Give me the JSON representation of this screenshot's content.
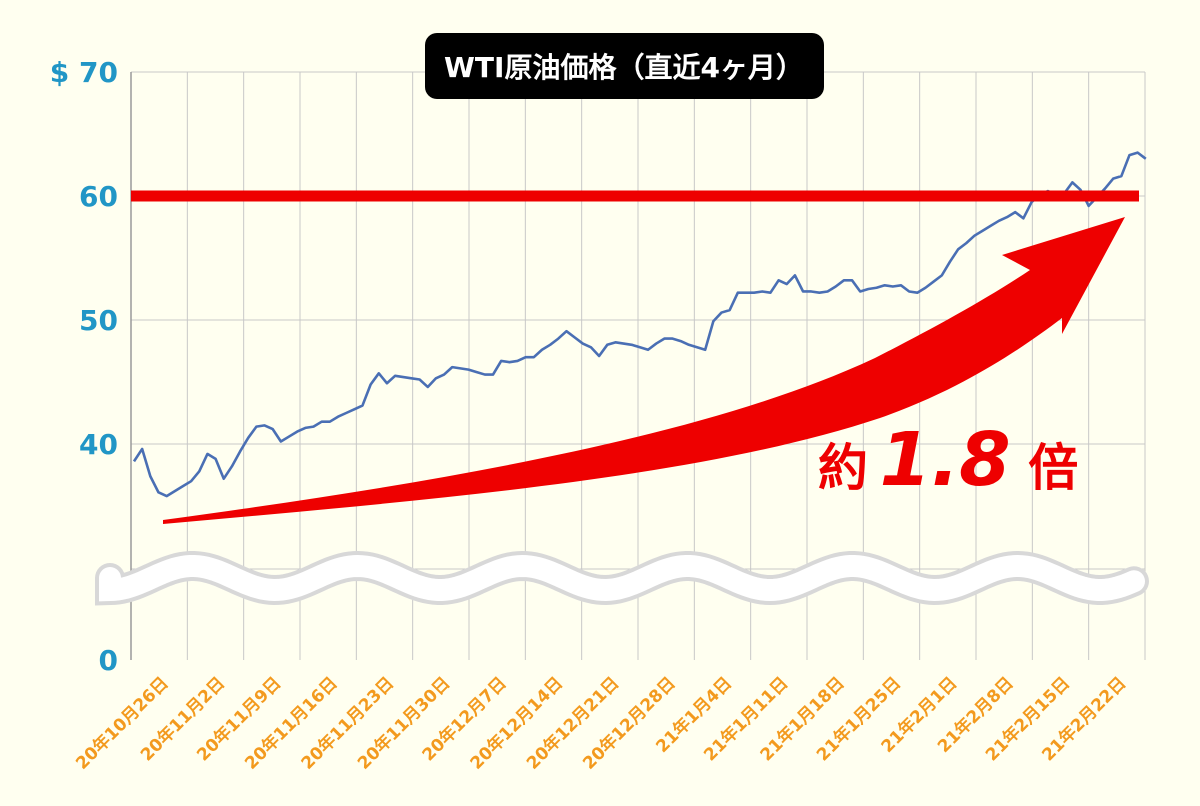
{
  "colors": {
    "background": "#fffff0",
    "grid": "#c8c8c8",
    "line": "#4a6fb4",
    "y_tick": "#2196c6",
    "x_tick": "#f39a1e",
    "threshold": "#ee0000",
    "arrow": "#ee0000",
    "title_bg": "#000000",
    "title_text": "#ffffff"
  },
  "annotation": {
    "prefix": "約",
    "value": "1.8",
    "suffix": "倍"
  },
  "chart_data": {
    "type": "line",
    "title": "WTI原油価格（直近4ヶ月）",
    "y_axis_break": true,
    "y_ticks": [
      {
        "value": 70,
        "label": "$ 70"
      },
      {
        "value": 60,
        "label": "60"
      },
      {
        "value": 50,
        "label": "50"
      },
      {
        "value": 40,
        "label": "40"
      },
      {
        "value": 0,
        "label": "0"
      }
    ],
    "x_ticks": [
      "20年10月26日",
      "20年11月2日",
      "20年11月9日",
      "20年11月16日",
      "20年11月23日",
      "20年11月30日",
      "20年12月7日",
      "20年12月14日",
      "20年12月21日",
      "20年12月28日",
      "21年1月4日",
      "21年1月11日",
      "21年1月18日",
      "21年1月25日",
      "21年2月1日",
      "21年2月8日",
      "21年2月15日",
      "21年2月22日"
    ],
    "threshold": 60,
    "series": [
      {
        "values": [
          [
            0,
            38.6
          ],
          [
            1,
            39.6
          ],
          [
            2,
            37.4
          ],
          [
            3,
            36.1
          ],
          [
            4,
            35.8
          ],
          [
            5,
            36.2
          ],
          [
            6,
            36.6
          ],
          [
            7,
            37.0
          ],
          [
            8,
            37.8
          ],
          [
            9,
            39.2
          ],
          [
            10,
            38.8
          ],
          [
            11,
            37.2
          ],
          [
            12,
            38.2
          ],
          [
            13,
            39.4
          ],
          [
            14,
            40.5
          ],
          [
            15,
            41.4
          ],
          [
            16,
            41.5
          ],
          [
            17,
            41.2
          ],
          [
            18,
            40.2
          ],
          [
            19,
            40.6
          ],
          [
            20,
            41.0
          ],
          [
            21,
            41.3
          ],
          [
            22,
            41.4
          ],
          [
            23,
            41.8
          ],
          [
            24,
            41.8
          ],
          [
            25,
            42.2
          ],
          [
            26,
            42.5
          ],
          [
            27,
            42.8
          ],
          [
            28,
            43.1
          ],
          [
            29,
            44.8
          ],
          [
            30,
            45.7
          ],
          [
            31,
            44.9
          ],
          [
            32,
            45.5
          ],
          [
            33,
            45.4
          ],
          [
            34,
            45.3
          ],
          [
            35,
            45.2
          ],
          [
            36,
            44.6
          ],
          [
            37,
            45.3
          ],
          [
            38,
            45.6
          ],
          [
            39,
            46.2
          ],
          [
            40,
            46.1
          ],
          [
            41,
            46.0
          ],
          [
            42,
            45.8
          ],
          [
            43,
            45.6
          ],
          [
            44,
            45.6
          ],
          [
            45,
            46.7
          ],
          [
            46,
            46.6
          ],
          [
            47,
            46.7
          ],
          [
            48,
            47.0
          ],
          [
            49,
            47.0
          ],
          [
            50,
            47.6
          ],
          [
            51,
            48.0
          ],
          [
            52,
            48.5
          ],
          [
            53,
            49.1
          ],
          [
            54,
            48.6
          ],
          [
            55,
            48.1
          ],
          [
            56,
            47.8
          ],
          [
            57,
            47.1
          ],
          [
            58,
            48.0
          ],
          [
            59,
            48.2
          ],
          [
            60,
            48.1
          ],
          [
            61,
            48.0
          ],
          [
            62,
            47.8
          ],
          [
            63,
            47.6
          ],
          [
            64,
            48.1
          ],
          [
            65,
            48.5
          ],
          [
            66,
            48.5
          ],
          [
            67,
            48.3
          ],
          [
            68,
            48.0
          ],
          [
            69,
            47.8
          ],
          [
            70,
            47.6
          ],
          [
            71,
            49.9
          ],
          [
            72,
            50.6
          ],
          [
            73,
            50.8
          ],
          [
            74,
            52.2
          ],
          [
            75,
            52.2
          ],
          [
            76,
            52.2
          ],
          [
            77,
            52.3
          ],
          [
            78,
            52.2
          ],
          [
            79,
            53.2
          ],
          [
            80,
            52.9
          ],
          [
            81,
            53.6
          ],
          [
            82,
            52.3
          ],
          [
            83,
            52.3
          ],
          [
            84,
            52.2
          ],
          [
            85,
            52.3
          ],
          [
            86,
            52.7
          ],
          [
            87,
            53.2
          ],
          [
            88,
            53.2
          ],
          [
            89,
            52.3
          ],
          [
            90,
            52.5
          ],
          [
            91,
            52.6
          ],
          [
            92,
            52.8
          ],
          [
            93,
            52.7
          ],
          [
            94,
            52.8
          ],
          [
            95,
            52.3
          ],
          [
            96,
            52.2
          ],
          [
            97,
            52.6
          ],
          [
            98,
            53.1
          ],
          [
            99,
            53.6
          ],
          [
            100,
            54.7
          ],
          [
            101,
            55.7
          ],
          [
            102,
            56.2
          ],
          [
            103,
            56.8
          ],
          [
            104,
            57.2
          ],
          [
            105,
            57.6
          ],
          [
            106,
            58.0
          ],
          [
            107,
            58.3
          ],
          [
            108,
            58.7
          ],
          [
            109,
            58.2
          ],
          [
            110,
            59.5
          ],
          [
            111,
            60.1
          ],
          [
            112,
            60.4
          ],
          [
            113,
            60.1
          ],
          [
            114,
            60.2
          ],
          [
            115,
            61.1
          ],
          [
            116,
            60.5
          ],
          [
            117,
            59.2
          ],
          [
            118,
            59.9
          ],
          [
            119,
            60.6
          ],
          [
            120,
            61.4
          ],
          [
            121,
            61.6
          ],
          [
            122,
            63.3
          ],
          [
            123,
            63.5
          ],
          [
            124,
            63.0
          ]
        ]
      }
    ]
  }
}
